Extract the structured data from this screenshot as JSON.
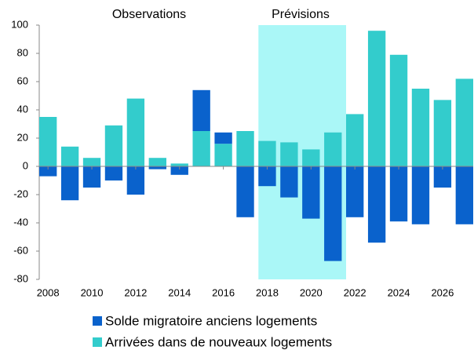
{
  "chart_data": {
    "type": "bar",
    "stacked": true,
    "annotations": [
      {
        "text": "Observations",
        "color": "#000000"
      },
      {
        "text": "Prévisions",
        "color": "#0000ff"
      }
    ],
    "highlight": {
      "from": 2017.6,
      "to": 2021.6,
      "color": "#aaf7f7"
    },
    "x": [
      2008,
      2009,
      2010,
      2011,
      2012,
      2013,
      2014,
      2015,
      2016,
      2017,
      2018,
      2019,
      2020,
      2021,
      2022,
      2023,
      2024,
      2025,
      2026,
      2027
    ],
    "series": [
      {
        "name": "Solde migratoire anciens logements",
        "color": "#0a62cc",
        "values": [
          -7,
          -24,
          -15,
          -10,
          -20,
          -2,
          -6,
          29,
          8,
          -36,
          -14,
          -22,
          -37,
          -67,
          -36,
          -54,
          -39,
          -41,
          -15,
          -41
        ]
      },
      {
        "name": "Arrivées dans de nouveaux logements",
        "color": "#33cccc",
        "values": [
          35,
          14,
          6,
          29,
          48,
          6,
          2,
          25,
          16,
          25,
          18,
          17,
          12,
          24,
          37,
          96,
          79,
          55,
          47,
          62
        ]
      }
    ],
    "xlim": [
      2007.6,
      2027.4
    ],
    "xticks": [
      2008,
      2010,
      2012,
      2014,
      2016,
      2018,
      2020,
      2022,
      2024,
      2026
    ],
    "ylim": [
      -80,
      100
    ],
    "yticks": [
      -80,
      -60,
      -40,
      -20,
      0,
      20,
      40,
      60,
      80,
      100
    ]
  }
}
